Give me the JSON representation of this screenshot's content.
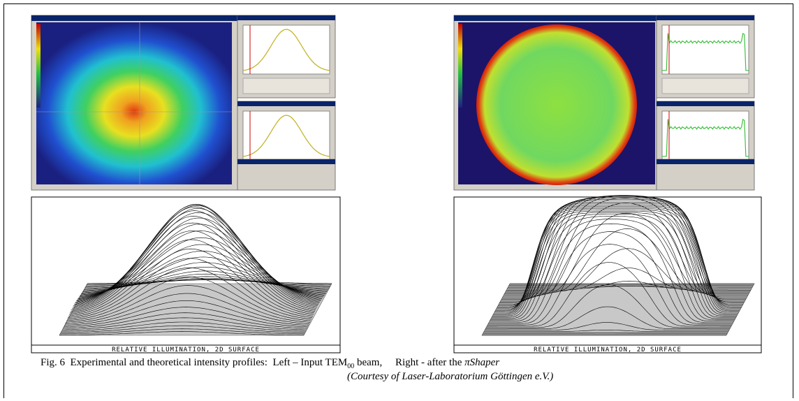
{
  "left_panel": {
    "surface_label": "RELATIVE ILLUMINATION, 2D SURFACE"
  },
  "right_panel": {
    "surface_label": "RELATIVE ILLUMINATION, 2D SURFACE"
  },
  "caption": {
    "figure": "Fig. 6",
    "text": "Experimental and theoretical intensity profiles:",
    "left": "Left – Input TEM",
    "left_subscript": "00",
    "left_suffix": "beam,",
    "right": "Right - after the",
    "right_shaper": "πShaper",
    "courtesy": "(Courtesy of Laser-Laboratorium Göttingen e.V.)"
  }
}
